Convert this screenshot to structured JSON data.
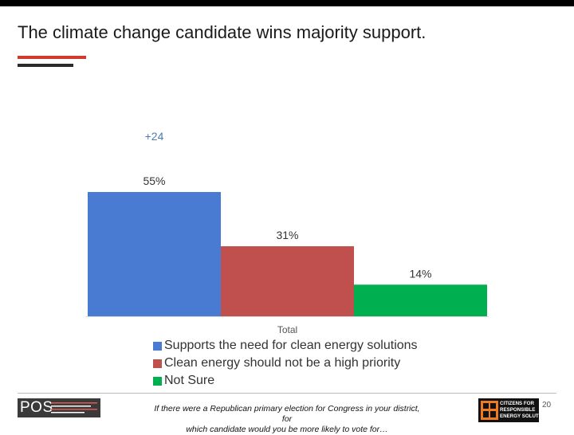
{
  "slide": {
    "title": "The climate change candidate wins majority support.",
    "page_number": "20",
    "footnote_line1": "If there were a Republican primary election for Congress in your district, for",
    "footnote_line2": "which candidate would you be more likely to vote for…",
    "pos_logo_text": "POS",
    "partner_logo_lines": [
      "CITIZENS FOR",
      "RESPONSIBLE",
      "ENERGY SOLUTIONS"
    ]
  },
  "chart_data": {
    "type": "bar",
    "categories": [
      "Total"
    ],
    "series": [
      {
        "name": "Supports the need for clean energy solutions",
        "values": [
          55
        ],
        "label": "55%",
        "color": "#4a7bd3"
      },
      {
        "name": "Clean energy should not be a high priority",
        "values": [
          31
        ],
        "label": "31%",
        "color": "#c0504d"
      },
      {
        "name": "Not Sure",
        "values": [
          14
        ],
        "label": "14%",
        "color": "#00b050"
      }
    ],
    "annotation": {
      "text": "+24",
      "color": "#4a7bb8"
    },
    "ylim": [
      0,
      55
    ],
    "grid": false,
    "legend_position": "bottom-left"
  }
}
